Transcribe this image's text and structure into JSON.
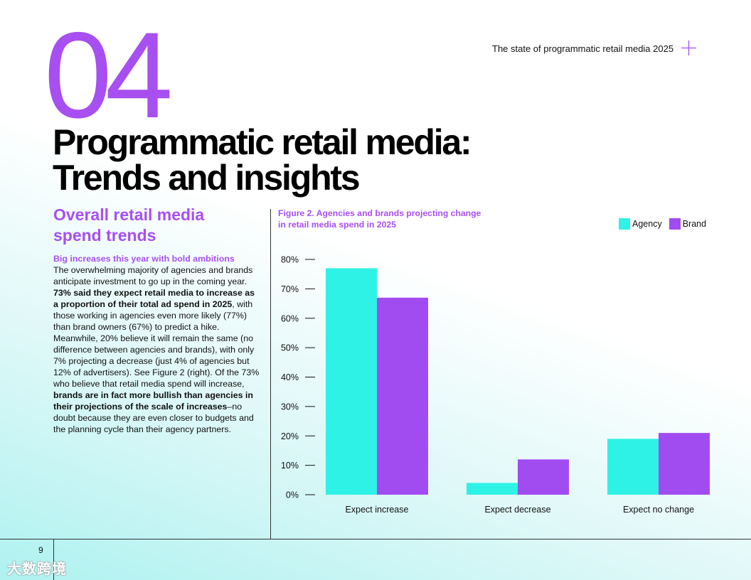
{
  "header": {
    "section_number": "04",
    "doc_title": "The state of programmatic retail media 2025"
  },
  "main_title": {
    "line1": "Programmatic retail media:",
    "line2": "Trends and insights"
  },
  "section": {
    "heading_line1": "Overall retail media",
    "heading_line2": "spend trends",
    "lead": "Big increases this year with bold ambitions",
    "p1": "The overwhelming majority of agencies and brands anticipate investment to go up in the coming year. ",
    "b1": "73% said they expect retail media to increase as a proportion of their total ad spend in 2025",
    "p2": ", with those working in agencies even more likely (77%) than brand owners (67%) to predict a hike. Meanwhile, 20% believe it will remain the same (no difference between agencies and brands), with only 7% projecting a decrease (just 4% of agencies but 12% of advertisers). See Figure 2 (right). Of the 73% who believe that retail media spend will increase, ",
    "b2": "brands are in fact more bullish than agencies in their projections of the scale of increases",
    "p3": "–no doubt because they are even closer to budgets and the planning cycle than their agency partners."
  },
  "footer": {
    "page_number": "9",
    "watermark": "大数跨境"
  },
  "colors": {
    "accent": "#a74ff0",
    "agency": "#2ef2e6",
    "brand": "#a14cf0"
  },
  "chart_data": {
    "type": "bar",
    "title_line1": "Figure 2. Agencies and brands projecting change",
    "title_line2": "in retail media spend in 2025",
    "categories": [
      "Expect increase",
      "Expect decrease",
      "Expect no change"
    ],
    "series": [
      {
        "name": "Agency",
        "values": [
          77,
          4,
          19
        ],
        "color": "#2ef2e6"
      },
      {
        "name": "Brand",
        "values": [
          67,
          12,
          21
        ],
        "color": "#a14cf0"
      }
    ],
    "yticks": [
      "80%",
      "70%",
      "60%",
      "50%",
      "40%",
      "30%",
      "20%",
      "10%",
      "0%"
    ],
    "ylim": [
      0,
      80
    ],
    "xlabel": "",
    "ylabel": "",
    "legend_position": "top-right"
  }
}
